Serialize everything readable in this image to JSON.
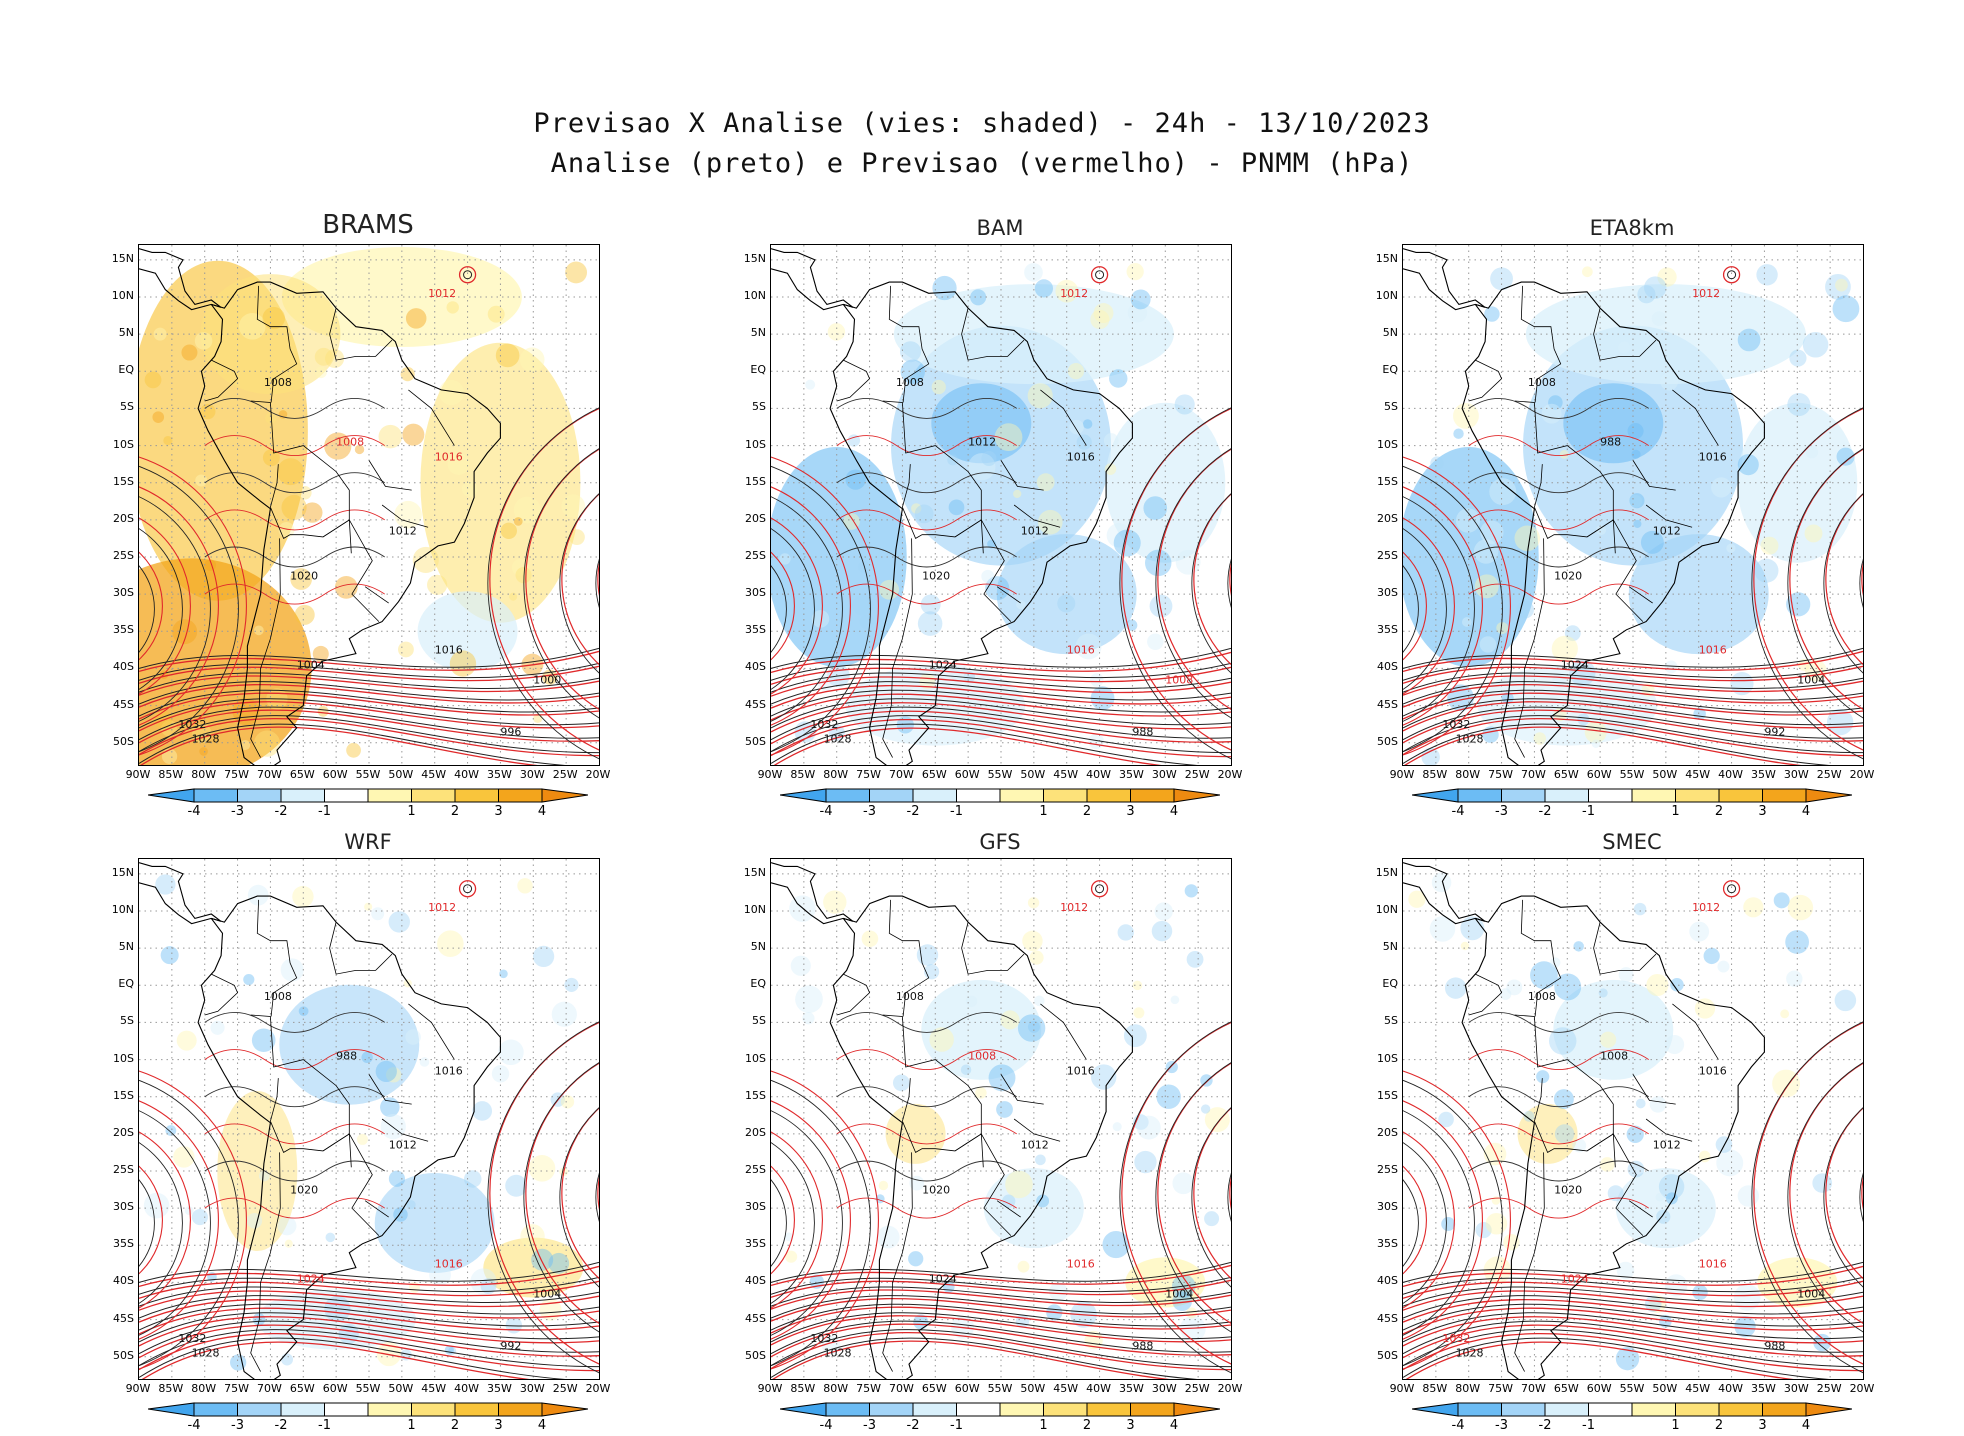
{
  "title_line1": "Previsao X Analise (vies: shaded) - 24h - 13/10/2023",
  "title_line2": "Analise (preto) e Previsao (vermelho) - PNMM (hPa)",
  "axes": {
    "lat_ticks": [
      "15N",
      "10N",
      "5N",
      "EQ",
      "5S",
      "10S",
      "15S",
      "20S",
      "25S",
      "30S",
      "35S",
      "40S",
      "45S",
      "50S"
    ],
    "lon_ticks": [
      "90W",
      "85W",
      "80W",
      "75W",
      "70W",
      "65W",
      "60W",
      "55W",
      "50W",
      "45W",
      "40W",
      "35W",
      "30W",
      "25W",
      "20W"
    ]
  },
  "colorbar": {
    "labels": [
      "-4",
      "-3",
      "-2",
      "-1",
      "1",
      "2",
      "3",
      "4"
    ],
    "colors": [
      "#41a5ee",
      "#6cbcf4",
      "#a3d4f7",
      "#d9f0fb",
      "#ffffff",
      "#fff7b3",
      "#fde27a",
      "#f9c53c",
      "#f3a51c",
      "#ee8a10"
    ]
  },
  "legend_colors": {
    "analysis": "#000000",
    "forecast": "#e0292b"
  },
  "panels": [
    {
      "name": "BRAMS",
      "bias": "warm",
      "labels": [
        {
          "t": "1012",
          "c": "r"
        },
        {
          "t": "1008",
          "c": "k"
        },
        {
          "t": "1016",
          "c": "r"
        },
        {
          "t": "1020",
          "c": "k"
        },
        {
          "t": "1012",
          "c": "k"
        },
        {
          "t": "1004",
          "c": "k"
        },
        {
          "t": "1028",
          "c": "k"
        },
        {
          "t": "1032",
          "c": "k"
        },
        {
          "t": "1000",
          "c": "k"
        },
        {
          "t": "996",
          "c": "k"
        },
        {
          "t": "1016",
          "c": "k"
        },
        {
          "t": "1008",
          "c": "r"
        }
      ]
    },
    {
      "name": "BAM",
      "bias": "cool",
      "labels": [
        {
          "t": "1012",
          "c": "r"
        },
        {
          "t": "1008",
          "c": "k"
        },
        {
          "t": "1016",
          "c": "k"
        },
        {
          "t": "1020",
          "c": "k"
        },
        {
          "t": "1012",
          "c": "k"
        },
        {
          "t": "1024",
          "c": "k"
        },
        {
          "t": "1028",
          "c": "k"
        },
        {
          "t": "1032",
          "c": "k"
        },
        {
          "t": "1008",
          "c": "r"
        },
        {
          "t": "988",
          "c": "k"
        },
        {
          "t": "1016",
          "c": "r"
        },
        {
          "t": "1012",
          "c": "k"
        }
      ]
    },
    {
      "name": "ETA8km",
      "bias": "cool",
      "labels": [
        {
          "t": "1012",
          "c": "r"
        },
        {
          "t": "1008",
          "c": "k"
        },
        {
          "t": "1016",
          "c": "k"
        },
        {
          "t": "1020",
          "c": "k"
        },
        {
          "t": "1012",
          "c": "k"
        },
        {
          "t": "1024",
          "c": "k"
        },
        {
          "t": "1028",
          "c": "k"
        },
        {
          "t": "1032",
          "c": "k"
        },
        {
          "t": "1004",
          "c": "k"
        },
        {
          "t": "992",
          "c": "k"
        },
        {
          "t": "1016",
          "c": "r"
        },
        {
          "t": "988",
          "c": "k"
        }
      ]
    },
    {
      "name": "WRF",
      "bias": "mixed",
      "labels": [
        {
          "t": "1012",
          "c": "r"
        },
        {
          "t": "1008",
          "c": "k"
        },
        {
          "t": "1016",
          "c": "k"
        },
        {
          "t": "1020",
          "c": "k"
        },
        {
          "t": "1012",
          "c": "k"
        },
        {
          "t": "1024",
          "c": "r"
        },
        {
          "t": "1028",
          "c": "k"
        },
        {
          "t": "1032",
          "c": "k"
        },
        {
          "t": "1004",
          "c": "k"
        },
        {
          "t": "992",
          "c": "k"
        },
        {
          "t": "1016",
          "c": "r"
        },
        {
          "t": "988",
          "c": "k"
        }
      ]
    },
    {
      "name": "GFS",
      "bias": "light",
      "labels": [
        {
          "t": "1012",
          "c": "r"
        },
        {
          "t": "1008",
          "c": "k"
        },
        {
          "t": "1016",
          "c": "k"
        },
        {
          "t": "1020",
          "c": "k"
        },
        {
          "t": "1012",
          "c": "k"
        },
        {
          "t": "1024",
          "c": "k"
        },
        {
          "t": "1028",
          "c": "k"
        },
        {
          "t": "1032",
          "c": "k"
        },
        {
          "t": "1004",
          "c": "k"
        },
        {
          "t": "988",
          "c": "k"
        },
        {
          "t": "1016",
          "c": "r"
        },
        {
          "t": "1008",
          "c": "r"
        }
      ]
    },
    {
      "name": "SMEC",
      "bias": "light",
      "labels": [
        {
          "t": "1012",
          "c": "r"
        },
        {
          "t": "1008",
          "c": "k"
        },
        {
          "t": "1016",
          "c": "k"
        },
        {
          "t": "1020",
          "c": "k"
        },
        {
          "t": "1012",
          "c": "k"
        },
        {
          "t": "1024",
          "c": "r"
        },
        {
          "t": "1028",
          "c": "k"
        },
        {
          "t": "1032",
          "c": "r"
        },
        {
          "t": "1004",
          "c": "k"
        },
        {
          "t": "988",
          "c": "k"
        },
        {
          "t": "1016",
          "c": "r"
        },
        {
          "t": "1008",
          "c": "k"
        }
      ]
    }
  ]
}
